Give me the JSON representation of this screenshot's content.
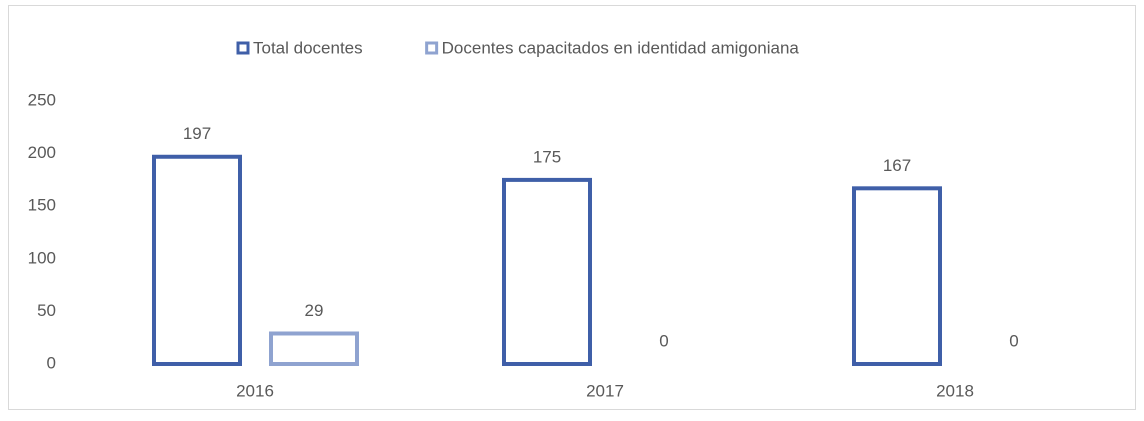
{
  "chart_data": {
    "type": "bar",
    "categories": [
      "2016",
      "2017",
      "2018"
    ],
    "series": [
      {
        "name": "Total docentes",
        "color": "#3f5fa8",
        "values": [
          197,
          175,
          167
        ]
      },
      {
        "name": "Docentes capacitados en identidad amigoniana",
        "color": "#8fa3d0",
        "values": [
          29,
          0,
          0
        ]
      }
    ],
    "ylim": [
      0,
      250
    ],
    "yticks": [
      0,
      50,
      100,
      150,
      200,
      250
    ],
    "grid": false,
    "legend": "top"
  }
}
